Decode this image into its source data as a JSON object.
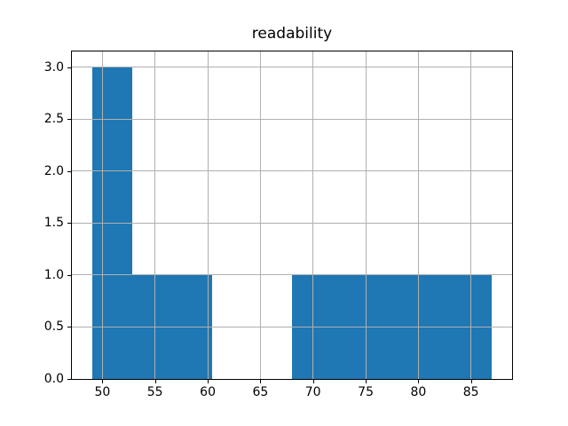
{
  "chart_data": {
    "type": "bar",
    "variant": "histogram",
    "title": "readability",
    "xlabel": "",
    "ylabel": "",
    "bin_edges": [
      49.0,
      52.8,
      56.6,
      60.4,
      64.2,
      68.0,
      71.8,
      75.6,
      79.4,
      83.2,
      87.0
    ],
    "counts": [
      3,
      1,
      1,
      0,
      0,
      1,
      1,
      1,
      1,
      1
    ],
    "xlim": [
      47.1,
      88.9
    ],
    "ylim": [
      0,
      3.15
    ],
    "xticks": [
      50,
      55,
      60,
      65,
      70,
      75,
      80,
      85
    ],
    "xtick_labels": [
      "50",
      "55",
      "60",
      "65",
      "70",
      "75",
      "80",
      "85"
    ],
    "yticks": [
      0.0,
      0.5,
      1.0,
      1.5,
      2.0,
      2.5,
      3.0
    ],
    "ytick_labels": [
      "0.0",
      "0.5",
      "1.0",
      "1.5",
      "2.0",
      "2.5",
      "3.0"
    ],
    "grid": true,
    "legend": null,
    "bar_color": "#1f77b4",
    "grid_color": "#b0b0b0",
    "frame_color": "#000000",
    "background_color": "#ffffff"
  }
}
